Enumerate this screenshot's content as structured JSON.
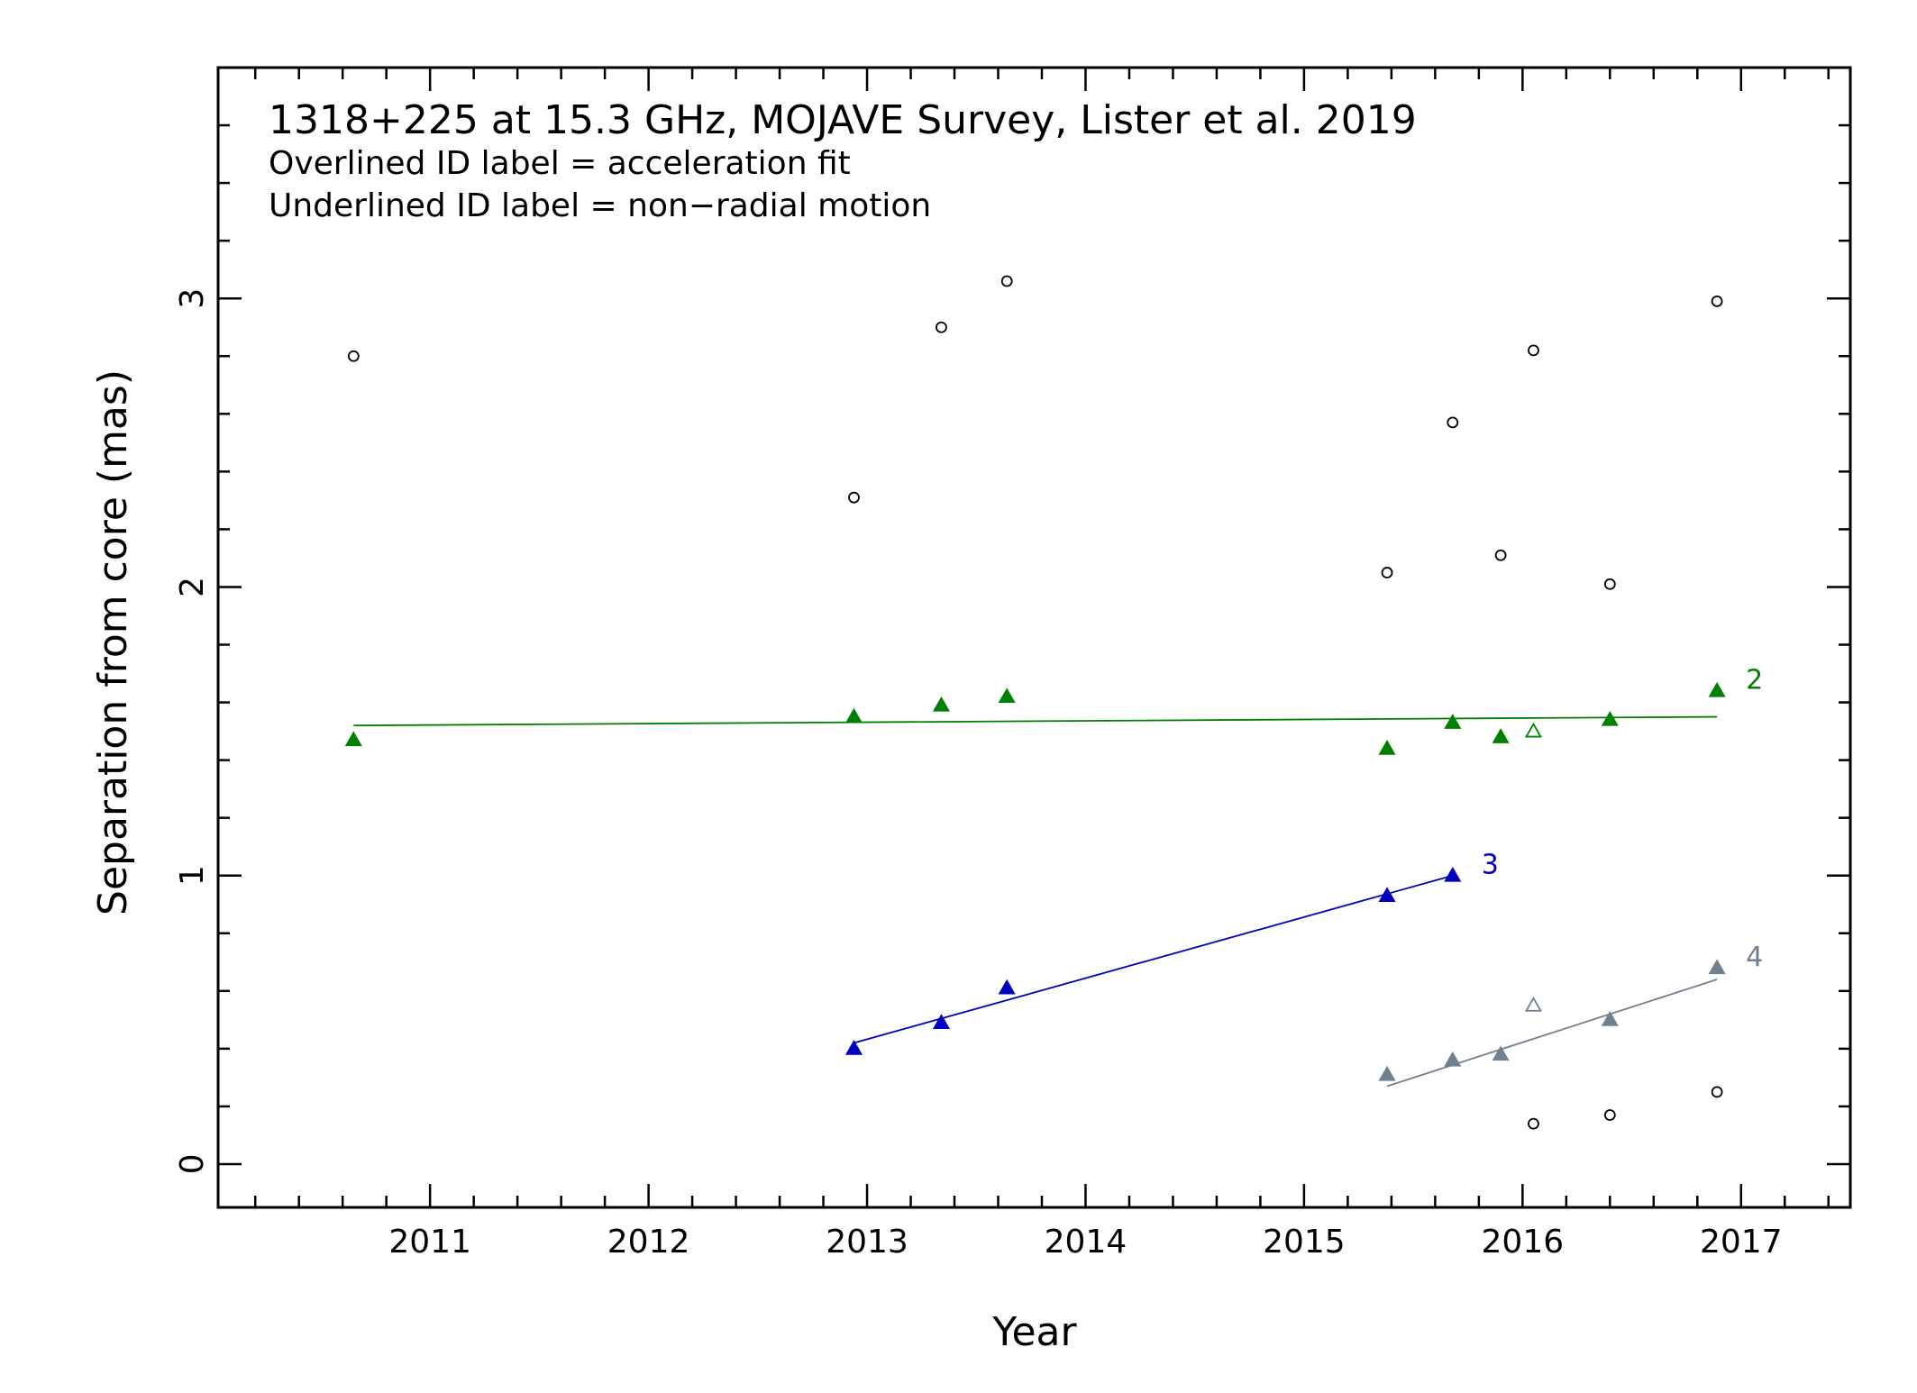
{
  "chart_data": {
    "type": "scatter",
    "title": "1318+225 at 15.3 GHz, MOJAVE Survey, Lister et al. 2019",
    "notes": [
      "Overlined ID label = acceleration fit",
      "Underlined ID label = non−radial motion"
    ],
    "xlabel": "Year",
    "ylabel": "Separation from core (mas)",
    "xlim": [
      2010.03,
      2017.5
    ],
    "ylim": [
      -0.15,
      3.8
    ],
    "x_ticks": [
      2011,
      2012,
      2013,
      2014,
      2015,
      2016,
      2017
    ],
    "x_tick_labels": [
      "2011",
      "2012",
      "2013",
      "2014",
      "2015",
      "2016",
      "2017"
    ],
    "y_ticks": [
      0,
      1,
      2,
      3
    ],
    "y_tick_labels": [
      "0",
      "1",
      "2",
      "3"
    ],
    "grid": false,
    "unassigned_points": {
      "marker": "open-circle",
      "color": "#000000",
      "points": [
        [
          2010.65,
          2.8
        ],
        [
          2012.94,
          2.31
        ],
        [
          2013.34,
          2.9
        ],
        [
          2013.64,
          3.06
        ],
        [
          2015.38,
          2.05
        ],
        [
          2015.68,
          2.57
        ],
        [
          2015.9,
          2.11
        ],
        [
          2016.05,
          2.82
        ],
        [
          2016.4,
          2.01
        ],
        [
          2016.89,
          2.99
        ],
        [
          2016.05,
          0.14
        ],
        [
          2016.4,
          0.17
        ],
        [
          2016.89,
          0.25
        ]
      ]
    },
    "series": [
      {
        "name": "2",
        "color": "#008000",
        "marker": "filled-triangle",
        "points": [
          [
            2010.65,
            1.47
          ],
          [
            2012.94,
            1.55
          ],
          [
            2013.34,
            1.59
          ],
          [
            2013.64,
            1.62
          ],
          [
            2015.38,
            1.44
          ],
          [
            2015.68,
            1.53
          ],
          [
            2015.9,
            1.48
          ],
          [
            2016.4,
            1.54
          ],
          [
            2016.89,
            1.64
          ]
        ],
        "open_points": [
          [
            2016.05,
            1.5
          ]
        ],
        "fit": [
          [
            2010.65,
            1.52
          ],
          [
            2016.89,
            1.55
          ]
        ]
      },
      {
        "name": "3",
        "color": "#0000c0",
        "marker": "filled-triangle",
        "points": [
          [
            2012.94,
            0.4
          ],
          [
            2013.34,
            0.49
          ],
          [
            2013.64,
            0.61
          ],
          [
            2015.38,
            0.93
          ],
          [
            2015.68,
            1.0
          ]
        ],
        "open_points": [],
        "fit": [
          [
            2012.94,
            0.42
          ],
          [
            2015.68,
            1.0
          ]
        ]
      },
      {
        "name": "4",
        "color": "#708090",
        "marker": "filled-triangle",
        "points": [
          [
            2015.38,
            0.31
          ],
          [
            2015.68,
            0.36
          ],
          [
            2015.9,
            0.38
          ],
          [
            2016.4,
            0.5
          ],
          [
            2016.89,
            0.68
          ]
        ],
        "open_points": [
          [
            2016.05,
            0.55
          ]
        ],
        "fit": [
          [
            2015.38,
            0.27
          ],
          [
            2016.89,
            0.64
          ]
        ]
      }
    ]
  }
}
